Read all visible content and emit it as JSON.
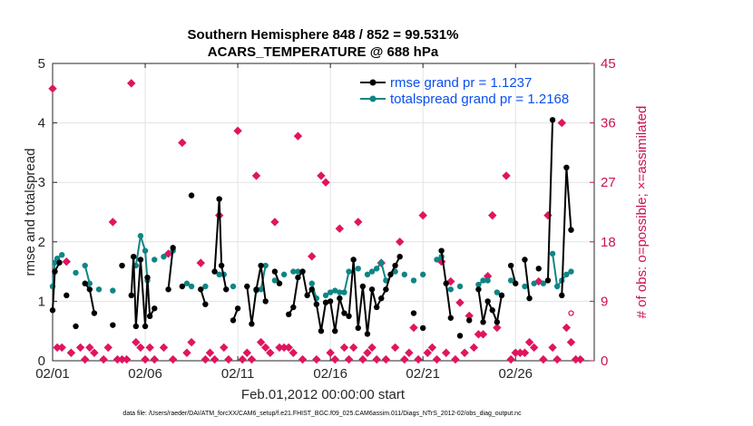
{
  "chart_data": {
    "type": "line",
    "title": "Southern Hemisphere 848 / 852 = 99.531%",
    "subtitle": "ACARS_TEMPERATURE @ 688 hPa",
    "xlabel": "Feb.01,2012 00:00:00 start",
    "ylabel": "rmse and totalspread",
    "y2label": "# of obs: o=possible; ×=assimilated",
    "footer": "data file: /Users/raeder/DAI/ATM_forcXX/CAM6_setup/f.e21.FHIST_BGC.f09_025.CAM6assim.011/Diags_NTrS_2012-02/obs_diag_output.nc",
    "xlim": [
      1,
      30.25
    ],
    "ylim": [
      0,
      5
    ],
    "y2lim": [
      0,
      45
    ],
    "x_ticks": [
      1,
      6,
      11,
      16,
      21,
      26
    ],
    "x_tick_labels": [
      "02/01",
      "02/06",
      "02/11",
      "02/16",
      "02/21",
      "02/26"
    ],
    "y_ticks": [
      0,
      1,
      2,
      3,
      4,
      5
    ],
    "y2_ticks": [
      0,
      9,
      18,
      27,
      36,
      45
    ],
    "grid": true,
    "legend": "top-right",
    "colors": {
      "rmse": "#000000",
      "spread": "#0f8585",
      "obs": "#e0155f"
    },
    "series": [
      {
        "name": "rmse grand pr = 1.1237",
        "points": [
          [
            1.0,
            0.85
          ],
          [
            1.12,
            1.5
          ],
          [
            1.37,
            1.65
          ],
          [
            1.75,
            1.1
          ],
          [
            2.25,
            0.58
          ],
          [
            2.75,
            1.3
          ],
          [
            3.0,
            1.2
          ],
          [
            3.25,
            0.8
          ],
          [
            4.25,
            0.6
          ],
          [
            4.75,
            1.6
          ],
          [
            5.25,
            1.1
          ],
          [
            5.37,
            1.75
          ],
          [
            5.5,
            0.58
          ],
          [
            5.75,
            1.7
          ],
          [
            6.0,
            0.58
          ],
          [
            6.12,
            1.4
          ],
          [
            6.25,
            0.75
          ],
          [
            6.5,
            0.88
          ],
          [
            7.25,
            1.2
          ],
          [
            7.5,
            1.9
          ],
          [
            8.0,
            1.25
          ],
          [
            8.5,
            2.78
          ],
          [
            9.0,
            1.2
          ],
          [
            9.25,
            0.95
          ],
          [
            9.75,
            1.5
          ],
          [
            10.0,
            2.72
          ],
          [
            10.12,
            1.6
          ],
          [
            10.37,
            1.2
          ],
          [
            10.75,
            0.68
          ],
          [
            11.0,
            0.88
          ],
          [
            11.5,
            1.25
          ],
          [
            11.75,
            0.62
          ],
          [
            12.0,
            1.2
          ],
          [
            12.25,
            1.6
          ],
          [
            12.5,
            1.0
          ],
          [
            13.0,
            1.5
          ],
          [
            13.25,
            1.3
          ],
          [
            13.75,
            0.78
          ],
          [
            14.0,
            0.9
          ],
          [
            14.25,
            1.4
          ],
          [
            14.5,
            1.5
          ],
          [
            14.75,
            1.1
          ],
          [
            15.0,
            1.2
          ],
          [
            15.25,
            0.95
          ],
          [
            15.5,
            0.5
          ],
          [
            15.75,
            0.98
          ],
          [
            16.0,
            1.0
          ],
          [
            16.25,
            0.5
          ],
          [
            16.5,
            1.05
          ],
          [
            16.75,
            0.8
          ],
          [
            17.0,
            0.75
          ],
          [
            17.25,
            1.7
          ],
          [
            17.5,
            0.55
          ],
          [
            17.75,
            1.25
          ],
          [
            18.0,
            0.45
          ],
          [
            18.25,
            1.2
          ],
          [
            18.5,
            0.9
          ],
          [
            18.75,
            1.05
          ],
          [
            19.0,
            1.2
          ],
          [
            19.25,
            1.45
          ],
          [
            19.5,
            1.6
          ],
          [
            19.75,
            1.75
          ],
          [
            20.5,
            0.8
          ],
          [
            21.0,
            0.55
          ],
          [
            22.0,
            1.85
          ],
          [
            22.25,
            1.3
          ],
          [
            22.5,
            0.72
          ],
          [
            23.0,
            0.42
          ],
          [
            23.5,
            0.68
          ],
          [
            24.0,
            1.2
          ],
          [
            24.25,
            0.65
          ],
          [
            24.5,
            1.0
          ],
          [
            24.75,
            0.85
          ],
          [
            25.0,
            0.65
          ],
          [
            25.25,
            1.1
          ],
          [
            25.75,
            1.6
          ],
          [
            26.0,
            1.3
          ],
          [
            26.5,
            1.7
          ],
          [
            26.75,
            1.05
          ],
          [
            27.25,
            1.55
          ],
          [
            27.75,
            1.35
          ],
          [
            28.0,
            4.05
          ],
          [
            28.5,
            1.1
          ],
          [
            28.75,
            3.25
          ],
          [
            29.0,
            2.2
          ]
        ]
      },
      {
        "name": "totalspread grand pr = 1.2168",
        "points": [
          [
            1.0,
            1.25
          ],
          [
            1.12,
            1.65
          ],
          [
            1.25,
            1.72
          ],
          [
            1.5,
            1.78
          ],
          [
            2.25,
            1.48
          ],
          [
            2.75,
            1.6
          ],
          [
            3.0,
            1.3
          ],
          [
            3.5,
            1.2
          ],
          [
            4.25,
            1.18
          ],
          [
            4.75,
            1.6
          ],
          [
            5.5,
            1.6
          ],
          [
            5.75,
            2.1
          ],
          [
            6.0,
            1.85
          ],
          [
            6.12,
            1.35
          ],
          [
            6.5,
            1.7
          ],
          [
            7.0,
            1.75
          ],
          [
            7.5,
            1.85
          ],
          [
            8.25,
            1.3
          ],
          [
            8.5,
            1.25
          ],
          [
            9.25,
            1.25
          ],
          [
            10.0,
            1.45
          ],
          [
            10.25,
            1.45
          ],
          [
            10.75,
            1.25
          ],
          [
            12.0,
            1.18
          ],
          [
            12.25,
            1.2
          ],
          [
            12.5,
            1.6
          ],
          [
            13.0,
            1.35
          ],
          [
            13.5,
            1.45
          ],
          [
            14.0,
            1.5
          ],
          [
            14.25,
            1.5
          ],
          [
            15.0,
            1.3
          ],
          [
            15.25,
            1.05
          ],
          [
            15.75,
            1.1
          ],
          [
            16.0,
            1.15
          ],
          [
            16.25,
            1.18
          ],
          [
            16.5,
            1.15
          ],
          [
            16.75,
            1.15
          ],
          [
            17.0,
            1.5
          ],
          [
            17.5,
            1.55
          ],
          [
            18.0,
            1.45
          ],
          [
            18.25,
            1.5
          ],
          [
            18.5,
            1.55
          ],
          [
            18.75,
            1.65
          ],
          [
            19.0,
            1.35
          ],
          [
            19.5,
            1.5
          ],
          [
            20.0,
            1.45
          ],
          [
            20.5,
            1.35
          ],
          [
            21.0,
            1.45
          ],
          [
            21.75,
            1.7
          ],
          [
            22.0,
            1.75
          ],
          [
            22.5,
            1.2
          ],
          [
            23.0,
            1.25
          ],
          [
            24.0,
            1.28
          ],
          [
            24.25,
            1.35
          ],
          [
            24.5,
            1.35
          ],
          [
            25.0,
            1.15
          ],
          [
            25.25,
            1.1
          ],
          [
            25.75,
            1.35
          ],
          [
            26.5,
            1.25
          ],
          [
            27.0,
            1.3
          ],
          [
            27.5,
            1.3
          ],
          [
            28.0,
            1.8
          ],
          [
            28.25,
            1.25
          ],
          [
            28.5,
            1.35
          ],
          [
            28.75,
            1.45
          ],
          [
            29.0,
            1.5
          ]
        ]
      },
      {
        "name": "obs possible",
        "axis": "y2",
        "marker": "o",
        "points": [
          [
            29.0,
            7.2
          ]
        ]
      },
      {
        "name": "obs assimilated",
        "axis": "y2",
        "marker": "x",
        "points": [
          [
            1.0,
            41.2
          ],
          [
            1.25,
            2.0
          ],
          [
            1.5,
            2.0
          ],
          [
            1.75,
            15.0
          ],
          [
            2.0,
            1.2
          ],
          [
            2.5,
            2.0
          ],
          [
            2.75,
            0.2
          ],
          [
            3.0,
            2.0
          ],
          [
            3.25,
            1.2
          ],
          [
            3.75,
            0.2
          ],
          [
            4.0,
            2.0
          ],
          [
            4.25,
            21.0
          ],
          [
            4.5,
            0.2
          ],
          [
            4.75,
            0.2
          ],
          [
            5.0,
            0.2
          ],
          [
            5.25,
            42.0
          ],
          [
            5.5,
            2.8
          ],
          [
            5.75,
            2.0
          ],
          [
            6.0,
            0.2
          ],
          [
            6.25,
            2.0
          ],
          [
            6.5,
            0.2
          ],
          [
            7.0,
            2.0
          ],
          [
            7.25,
            16.2
          ],
          [
            7.5,
            0.2
          ],
          [
            8.0,
            33.0
          ],
          [
            8.25,
            1.2
          ],
          [
            8.5,
            2.8
          ],
          [
            9.0,
            14.8
          ],
          [
            9.25,
            0.2
          ],
          [
            9.5,
            1.2
          ],
          [
            9.75,
            0.2
          ],
          [
            10.0,
            22.0
          ],
          [
            10.25,
            2.0
          ],
          [
            10.5,
            0.2
          ],
          [
            11.0,
            34.8
          ],
          [
            11.25,
            0.2
          ],
          [
            11.5,
            1.2
          ],
          [
            11.75,
            0.2
          ],
          [
            12.0,
            28.0
          ],
          [
            12.25,
            2.8
          ],
          [
            12.5,
            2.0
          ],
          [
            12.75,
            1.2
          ],
          [
            13.0,
            21.0
          ],
          [
            13.25,
            2.0
          ],
          [
            13.5,
            2.0
          ],
          [
            13.75,
            2.0
          ],
          [
            14.0,
            1.2
          ],
          [
            14.25,
            34.0
          ],
          [
            14.5,
            0.2
          ],
          [
            15.0,
            15.8
          ],
          [
            15.25,
            0.2
          ],
          [
            15.5,
            28.0
          ],
          [
            15.75,
            27.0
          ],
          [
            16.0,
            1.2
          ],
          [
            16.25,
            0.2
          ],
          [
            16.5,
            20.0
          ],
          [
            16.75,
            2.0
          ],
          [
            17.0,
            0.2
          ],
          [
            17.25,
            2.0
          ],
          [
            17.5,
            21.0
          ],
          [
            17.75,
            0.2
          ],
          [
            18.0,
            1.2
          ],
          [
            18.25,
            2.0
          ],
          [
            18.5,
            0.2
          ],
          [
            18.75,
            14.8
          ],
          [
            19.0,
            0.2
          ],
          [
            19.5,
            2.0
          ],
          [
            19.75,
            18.0
          ],
          [
            20.0,
            0.2
          ],
          [
            20.25,
            1.2
          ],
          [
            20.5,
            5.0
          ],
          [
            20.75,
            0.2
          ],
          [
            21.0,
            22.0
          ],
          [
            21.25,
            1.2
          ],
          [
            21.5,
            2.0
          ],
          [
            21.75,
            0.2
          ],
          [
            22.0,
            15.0
          ],
          [
            22.25,
            1.2
          ],
          [
            22.5,
            12.0
          ],
          [
            22.75,
            0.2
          ],
          [
            23.0,
            8.8
          ],
          [
            23.25,
            1.2
          ],
          [
            23.5,
            6.8
          ],
          [
            23.75,
            2.0
          ],
          [
            24.0,
            4.0
          ],
          [
            24.25,
            4.0
          ],
          [
            24.5,
            12.8
          ],
          [
            24.75,
            22.0
          ],
          [
            25.0,
            5.0
          ],
          [
            25.5,
            28.0
          ],
          [
            25.75,
            0.2
          ],
          [
            26.0,
            1.2
          ],
          [
            26.25,
            1.2
          ],
          [
            26.5,
            1.2
          ],
          [
            26.75,
            2.8
          ],
          [
            27.0,
            2.0
          ],
          [
            27.25,
            12.0
          ],
          [
            27.5,
            0.2
          ],
          [
            27.75,
            22.0
          ],
          [
            28.0,
            2.0
          ],
          [
            28.25,
            0.2
          ],
          [
            28.5,
            36.0
          ],
          [
            28.75,
            5.0
          ],
          [
            29.0,
            2.8
          ],
          [
            29.25,
            0.2
          ],
          [
            29.5,
            0.2
          ]
        ]
      }
    ]
  }
}
